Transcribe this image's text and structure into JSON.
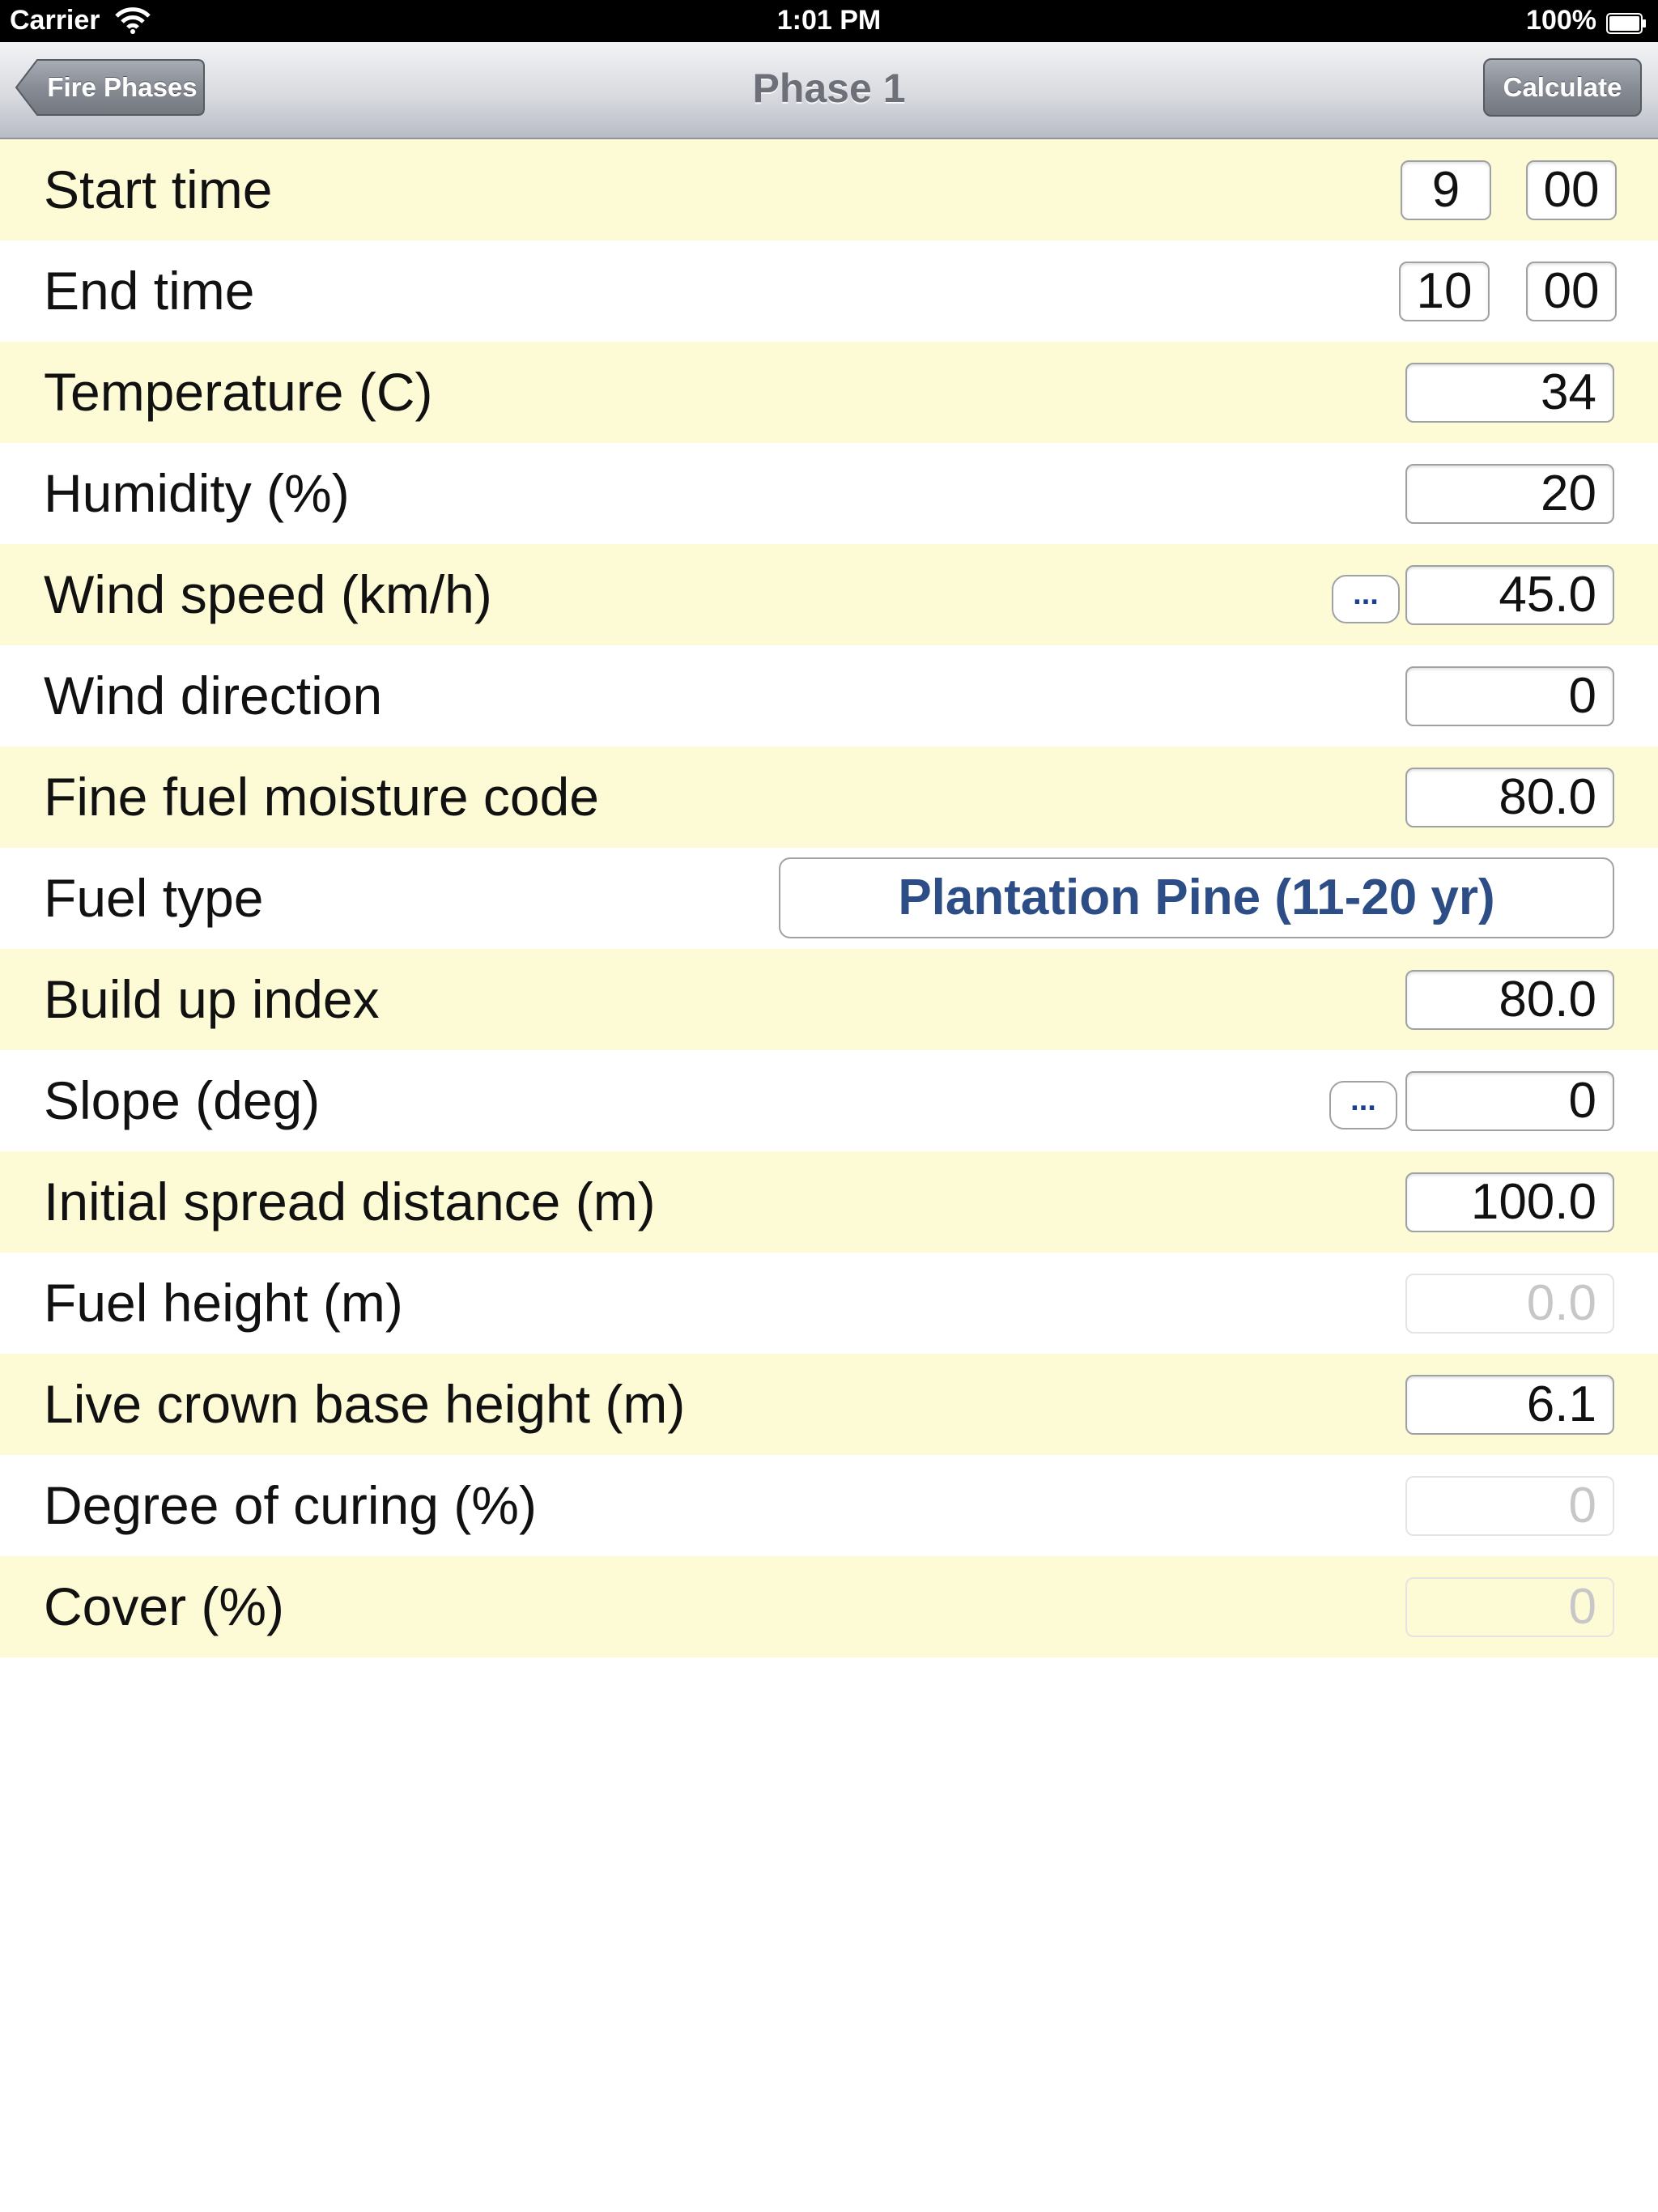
{
  "status_bar": {
    "carrier": "Carrier",
    "time": "1:01 PM",
    "battery": "100%"
  },
  "nav": {
    "back_label": "Fire Phases",
    "title": "Phase 1",
    "action_label": "Calculate"
  },
  "dots_label": "...",
  "rows": {
    "start_time": {
      "label": "Start time",
      "hour": "9",
      "minute": "00"
    },
    "end_time": {
      "label": "End time",
      "hour": "10",
      "minute": "00"
    },
    "temperature": {
      "label": "Temperature (C)",
      "value": "34"
    },
    "humidity": {
      "label": "Humidity (%)",
      "value": "20"
    },
    "wind_speed": {
      "label": "Wind speed (km/h)",
      "value": "45.0"
    },
    "wind_direction": {
      "label": "Wind direction",
      "value": "0"
    },
    "ffmc": {
      "label": "Fine fuel moisture code",
      "value": "80.0"
    },
    "fuel_type": {
      "label": "Fuel type",
      "value": "Plantation Pine (11-20 yr)"
    },
    "bui": {
      "label": "Build up index",
      "value": "80.0"
    },
    "slope": {
      "label": "Slope (deg)",
      "value": "0"
    },
    "initial_spread": {
      "label": "Initial spread distance (m)",
      "value": "100.0"
    },
    "fuel_height": {
      "label": "Fuel height (m)",
      "value": "0.0"
    },
    "crown_base_height": {
      "label": "Live crown base height (m)",
      "value": "6.1"
    },
    "curing": {
      "label": "Degree of curing (%)",
      "value": "0"
    },
    "cover": {
      "label": "Cover (%)",
      "value": "0"
    }
  }
}
